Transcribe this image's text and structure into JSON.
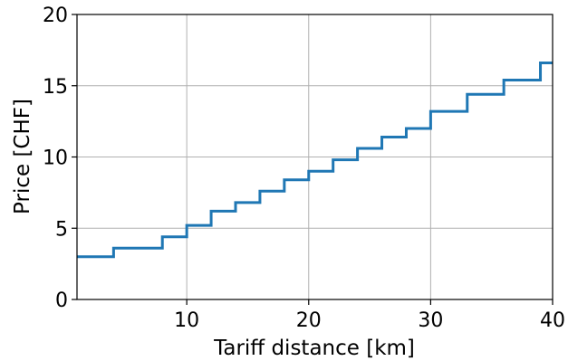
{
  "chart_data": {
    "type": "line",
    "step": "post",
    "xlabel": "Tariff distance [km]",
    "ylabel": "Price [CHF]",
    "xlim": [
      1,
      40
    ],
    "ylim": [
      0,
      20
    ],
    "xticks": [
      10,
      20,
      30,
      40
    ],
    "yticks": [
      0,
      5,
      10,
      15,
      20
    ],
    "grid": true,
    "series": [
      {
        "color": "#1f77b4",
        "x": [
          1,
          4,
          8,
          10,
          12,
          14,
          16,
          18,
          20,
          22,
          24,
          26,
          28,
          30,
          33,
          36,
          39,
          40
        ],
        "y": [
          3.0,
          3.6,
          4.4,
          5.2,
          6.2,
          6.8,
          7.6,
          8.4,
          9.0,
          9.8,
          10.6,
          11.4,
          12.0,
          13.2,
          14.4,
          15.4,
          16.6,
          16.6
        ]
      }
    ]
  }
}
